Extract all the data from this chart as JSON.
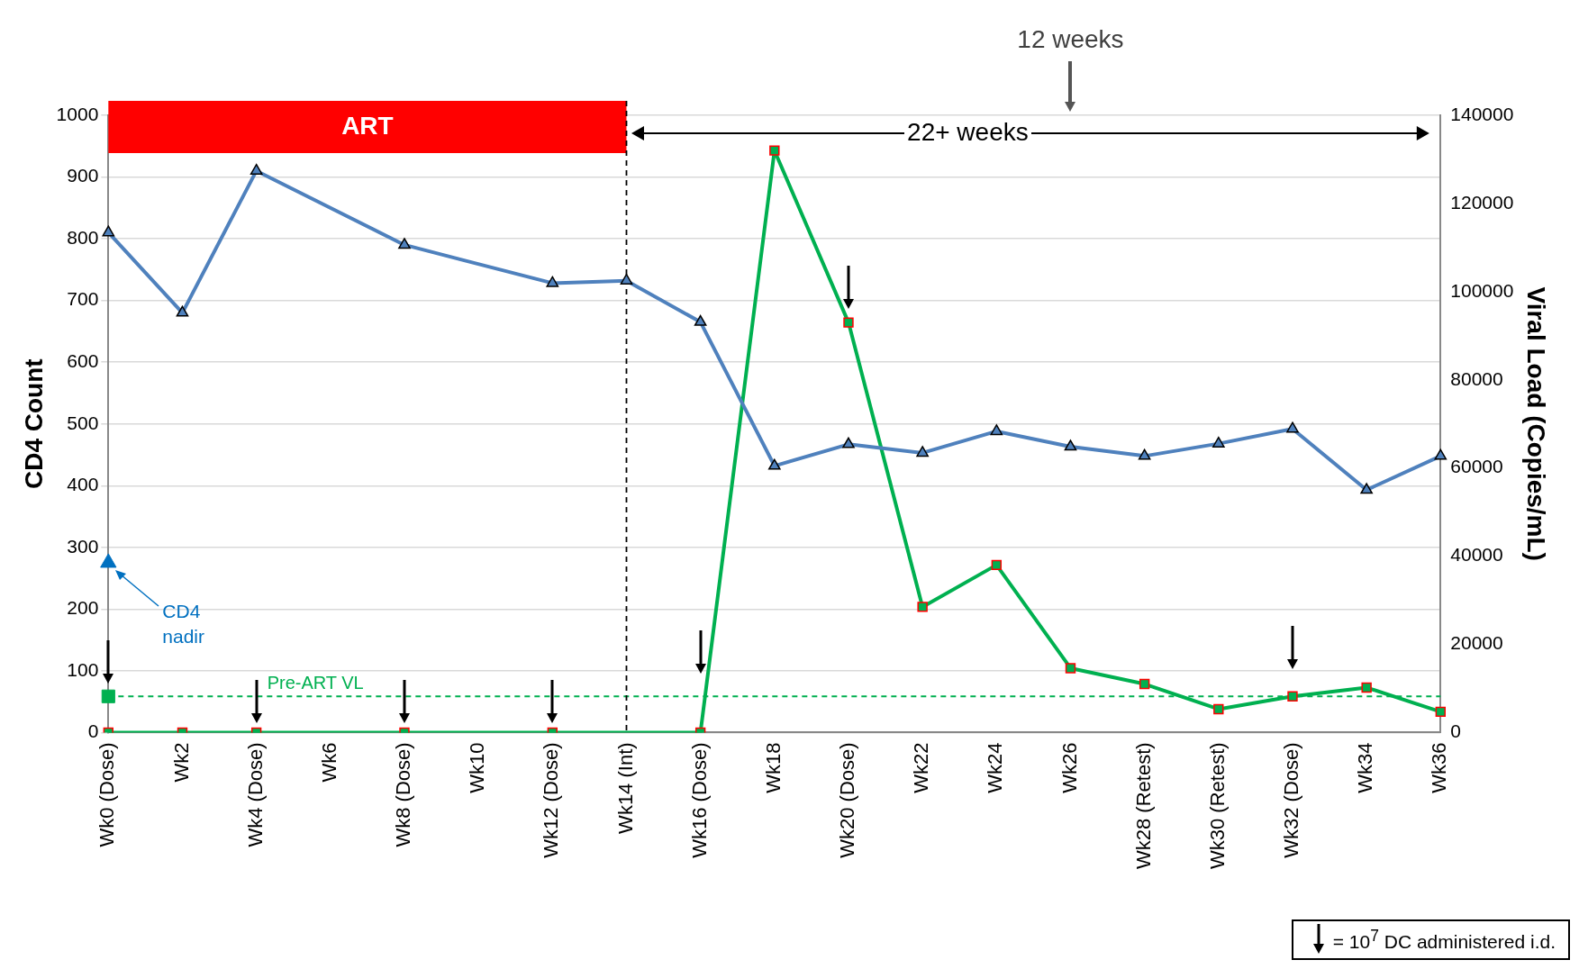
{
  "chart_data": {
    "type": "line",
    "ylabel": "CD4 Count",
    "y2label": "Viral Load (Copies/mL)",
    "categories": [
      "Wk0 (Dose)",
      "Wk2",
      "Wk4 (Dose)",
      "Wk6",
      "Wk8 (Dose)",
      "Wk10",
      "Wk12 (Dose)",
      "Wk14 (Int)",
      "Wk16 (Dose)",
      "Wk18",
      "Wk20 (Dose)",
      "Wk22",
      "Wk24",
      "Wk26",
      "Wk28 (Retest)",
      "Wk30 (Retest)",
      "Wk32 (Dose)",
      "Wk34",
      "Wk36"
    ],
    "series": [
      {
        "color": "#4f81bd",
        "marker": "triangle",
        "values": [
          810,
          680,
          910,
          null,
          790,
          null,
          728,
          732,
          665,
          432,
          467,
          453,
          488,
          463,
          448,
          468,
          492,
          393,
          448
        ]
      },
      {
        "color": "#00b050",
        "marker": "square",
        "axis": "y2",
        "values": [
          0,
          0,
          0,
          null,
          0,
          null,
          0,
          null,
          0,
          132000,
          93000,
          28500,
          38000,
          14600,
          11000,
          5300,
          8200,
          10200,
          4700
        ]
      },
      {
        "type": "scatter",
        "color": "#0070c0",
        "marker": "triangle",
        "values": [
          275,
          null,
          null,
          null,
          null,
          null,
          null,
          null,
          null,
          null,
          null,
          null,
          null,
          null,
          null,
          null,
          null,
          null,
          null
        ]
      },
      {
        "type": "scatter",
        "color": "#00b050",
        "marker": "square",
        "axis": "y2",
        "values": [
          8200,
          null,
          null,
          null,
          null,
          null,
          null,
          null,
          null,
          null,
          null,
          null,
          null,
          null,
          null,
          null,
          null,
          null,
          null
        ]
      }
    ],
    "ylim": [
      0,
      1000
    ],
    "yticks": [
      0,
      100,
      200,
      300,
      400,
      500,
      600,
      700,
      800,
      900,
      1000
    ],
    "y2lim": [
      0,
      140000
    ],
    "y2ticks": [
      0,
      20000,
      40000,
      60000,
      80000,
      100000,
      120000,
      140000
    ],
    "grid": "y",
    "legend": false,
    "ref_lines": [
      {
        "axis": "y2",
        "value": 8200,
        "label": "Pre-ART VL",
        "color": "#00b050",
        "line_style": "dashed"
      },
      {
        "axis": "x",
        "value": "Wk14 (Int)",
        "color": "#000000",
        "line_style": "dashed"
      }
    ],
    "bands": [
      {
        "axis": "x",
        "from": "Wk0 (Dose)",
        "to": "Wk14 (Int)",
        "label": "ART",
        "color": "#ff0000"
      }
    ],
    "annotations": [
      "CD4 nadir",
      "22+ weeks",
      "12 weeks",
      "= 10$^{7}$ DC administered i.d."
    ]
  }
}
